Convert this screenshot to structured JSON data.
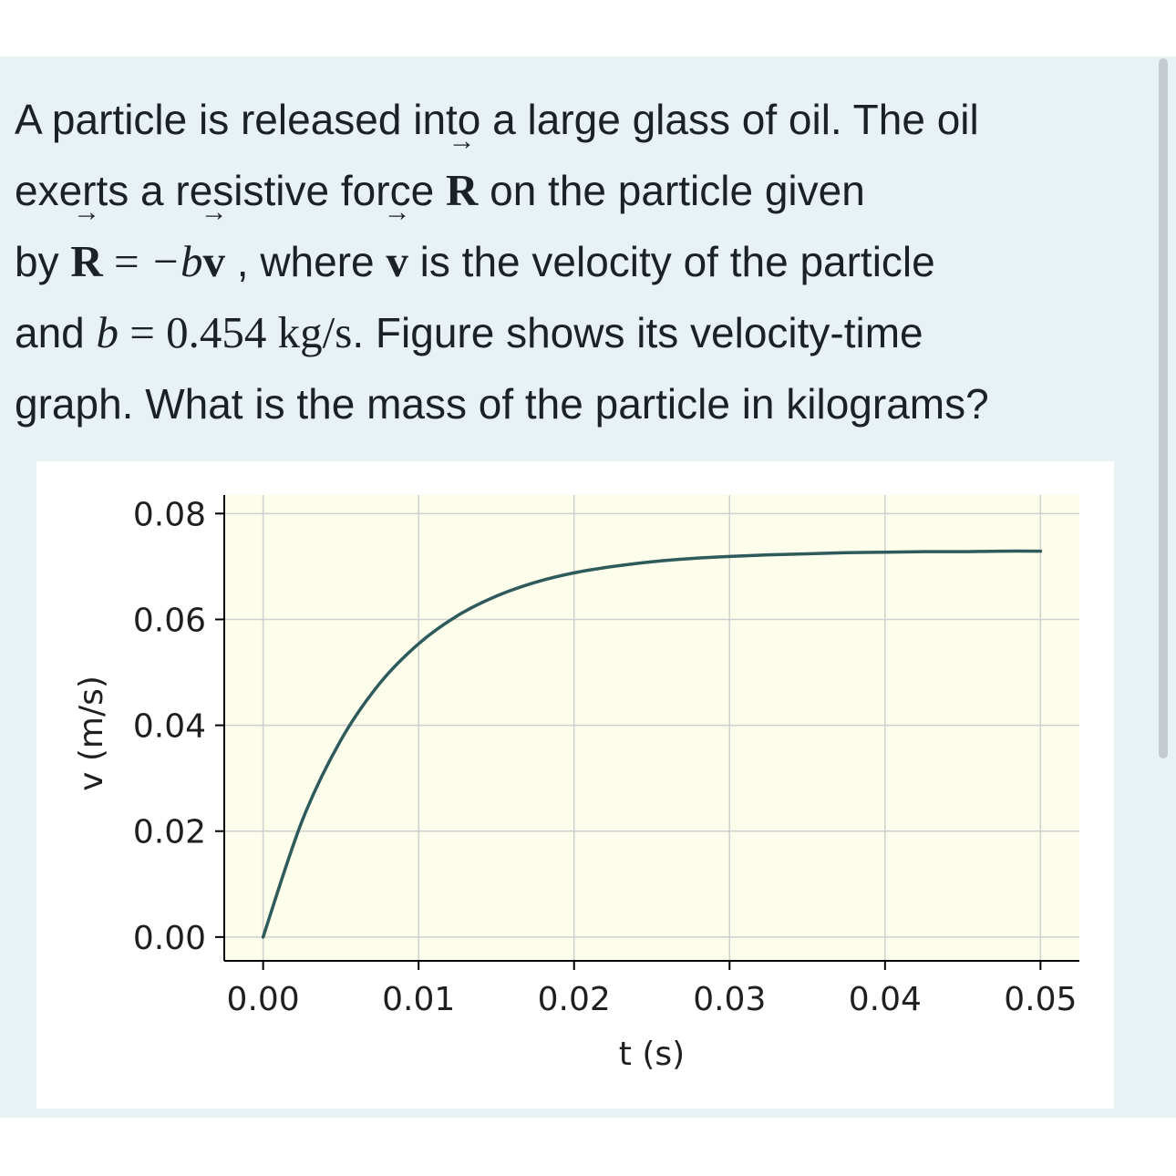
{
  "question": {
    "line1": "A particle is released into a large glass of oil. The oil",
    "line2_pre": "exerts a resistive force ",
    "line2_post": " on the particle  given",
    "line3_pre": "by ",
    "line3_mid": " , where ",
    "line3_post": " is the velocity of the particle",
    "line4_pre": "and ",
    "line4_post": ". Figure shows its velocity-time",
    "line5": "graph. What is the mass of the particle in kilograms?",
    "symbol_R": "R",
    "symbol_v": "v",
    "symbol_b": "b",
    "equals": " = ",
    "minus_b": "−b",
    "b_value": "0.454",
    "b_unit": "kg/s"
  },
  "chart_data": {
    "type": "line",
    "xlabel": "t (s)",
    "ylabel": "v (m/s)",
    "xlim": [
      -0.0025,
      0.0525
    ],
    "ylim": [
      -0.0045,
      0.0835
    ],
    "xticks": [
      0.0,
      0.01,
      0.02,
      0.03,
      0.04,
      0.05
    ],
    "yticks": [
      0.0,
      0.02,
      0.04,
      0.06,
      0.08
    ],
    "xtick_labels": [
      "0.00",
      "0.01",
      "0.02",
      "0.03",
      "0.04",
      "0.05"
    ],
    "ytick_labels": [
      "0.00",
      "0.02",
      "0.04",
      "0.06",
      "0.08"
    ],
    "grid": true,
    "series": [
      {
        "x": [
          0.0,
          0.0025,
          0.005,
          0.0075,
          0.01,
          0.0125,
          0.015,
          0.0175,
          0.02,
          0.0225,
          0.025,
          0.0275,
          0.03,
          0.0325,
          0.035,
          0.0375,
          0.04,
          0.0425,
          0.045,
          0.0475,
          0.05
        ],
        "values": [
          0.0,
          0.0219,
          0.0372,
          0.0479,
          0.0554,
          0.0607,
          0.0644,
          0.067,
          0.0688,
          0.07,
          0.0709,
          0.0715,
          0.0719,
          0.0722,
          0.0724,
          0.0726,
          0.0727,
          0.0728,
          0.0728,
          0.0729,
          0.0729
        ]
      }
    ],
    "colors": {
      "line": "#2e5a5c",
      "plot_background": "#fdfdec",
      "grid": "#cfcfcf"
    }
  }
}
